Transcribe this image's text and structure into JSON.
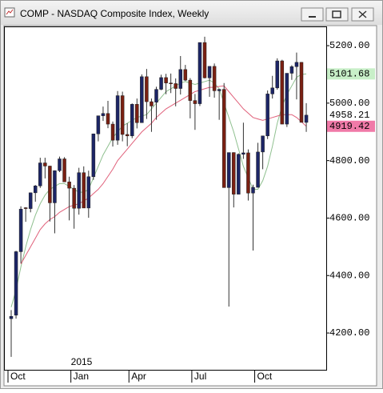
{
  "chart_data": {
    "type": "candlestick",
    "title": "COMP - NASDAQ Composite Index, Weekly",
    "year_label": "2015",
    "categories": [
      "Oct",
      null,
      null,
      null,
      null,
      null,
      null,
      null,
      null,
      null,
      null,
      null,
      null,
      "Jan",
      null,
      null,
      null,
      null,
      null,
      null,
      null,
      null,
      null,
      null,
      null,
      "Apr",
      null,
      null,
      null,
      null,
      null,
      null,
      null,
      null,
      null,
      null,
      null,
      null,
      "Jul",
      null,
      null,
      null,
      null,
      null,
      null,
      null,
      null,
      null,
      null,
      null,
      null,
      "Oct",
      null,
      null,
      null,
      null,
      null,
      null,
      null,
      null,
      null,
      null
    ],
    "open": [
      4250,
      4262,
      4483,
      4636,
      4633,
      4688,
      4712,
      4792,
      4781,
      4653,
      4765,
      4806,
      4726,
      4704,
      4634,
      4758,
      4635,
      4744,
      4893,
      4956,
      4964,
      4927,
      4871,
      5026,
      4891,
      4886,
      4996,
      4932,
      5092,
      5005,
      5003,
      5048,
      5089,
      5070,
      5068,
      5051,
      5117,
      5080,
      5009,
      4998,
      5211,
      5088,
      5128,
      5043,
      5048,
      4706,
      4828,
      4683,
      4822,
      4827,
      4687,
      4707,
      4830,
      4886,
      5032,
      5053,
      5147,
      4927,
      5104,
      5127,
      5142,
      4933
    ],
    "high": [
      4280,
      4486,
      4641,
      4638,
      4689,
      4715,
      4810,
      4810,
      4782,
      4766,
      4814,
      4812,
      4744,
      4715,
      4775,
      4780,
      4765,
      4894,
      4956,
      4988,
      5008,
      4936,
      5042,
      5040,
      4930,
      4999,
      5016,
      5100,
      5119,
      5016,
      5057,
      5099,
      5102,
      5103,
      5086,
      5164,
      5133,
      5087,
      5032,
      5211,
      5231,
      5128,
      5138,
      5049,
      5070,
      4828,
      4829,
      4825,
      4932,
      4839,
      4716,
      4862,
      4886,
      5044,
      5095,
      5156,
      5151,
      5104,
      5132,
      5176,
      5143,
      5000
    ],
    "low": [
      4117,
      4250,
      4443,
      4587,
      4620,
      4657,
      4705,
      4738,
      4588,
      4547,
      4760,
      4726,
      4592,
      4563,
      4612,
      4635,
      4601,
      4733,
      4867,
      4938,
      4913,
      4849,
      4855,
      4867,
      4850,
      4878,
      4912,
      4932,
      4945,
      4900,
      4942,
      5045,
      5031,
      5035,
      4989,
      5030,
      5077,
      4947,
      4907,
      4990,
      5086,
      5022,
      5019,
      4942,
      4706,
      4292,
      4637,
      4683,
      4806,
      4661,
      4487,
      4706,
      4770,
      4875,
      5016,
      5047,
      4927,
      4917,
      5081,
      5013,
      4933,
      4900
    ],
    "close": [
      4258,
      4483,
      4631,
      4633,
      4688,
      4712,
      4792,
      4781,
      4653,
      4765,
      4806,
      4726,
      4704,
      4634,
      4758,
      4635,
      4744,
      4893,
      4956,
      4964,
      4927,
      4871,
      5026,
      4891,
      4886,
      4996,
      4932,
      5092,
      5005,
      4990,
      5048,
      5089,
      5070,
      5068,
      5051,
      5117,
      5080,
      5009,
      4998,
      5211,
      5088,
      5128,
      5043,
      5048,
      4706,
      4828,
      4683,
      4822,
      4827,
      4687,
      4707,
      4830,
      4886,
      5032,
      5053,
      5147,
      4927,
      5104,
      5127,
      5142,
      4933,
      4958.21
    ],
    "up_color": "#1c2566",
    "down_color": "#7a2012",
    "overlays": [
      {
        "color": "#8fc08f",
        "values": [
          4290,
          4350,
          4430,
          4500,
          4560,
          4610,
          4650,
          4680,
          4700,
          4710,
          4720,
          4720,
          4710,
          4700,
          4690,
          4690,
          4700,
          4740,
          4780,
          4820,
          4850,
          4880,
          4900,
          4920,
          4930,
          4940,
          4950,
          4955,
          4960,
          4980,
          5000,
          5020,
          5040,
          5050,
          5060,
          5070,
          5075,
          5070,
          5065,
          5070,
          5075,
          5080,
          5070,
          5050,
          5000,
          4950,
          4900,
          4840,
          4780,
          4740,
          4700,
          4700,
          4730,
          4780,
          4850,
          4930,
          4990,
          5030,
          5060,
          5090,
          5100,
          5101.68
        ]
      },
      {
        "color": "#e0607a",
        "values": [
          null,
          null,
          4440,
          4470,
          4500,
          4530,
          4560,
          4580,
          4595,
          4605,
          4620,
          4630,
          4640,
          4645,
          4650,
          4660,
          4670,
          4685,
          4700,
          4720,
          4745,
          4770,
          4800,
          4820,
          4840,
          4860,
          4880,
          4900,
          4915,
          4930,
          4950,
          4965,
          4980,
          4990,
          5000,
          5010,
          5020,
          5030,
          5040,
          5045,
          5050,
          5055,
          5055,
          5058,
          5060,
          5040,
          5020,
          5000,
          4980,
          4965,
          4950,
          4945,
          4940,
          4945,
          4950,
          4955,
          4960,
          4960,
          4960,
          4950,
          4935,
          4919.42
        ]
      }
    ],
    "ylim": [
      4072,
      5267
    ],
    "yticks": [
      {
        "value": 4200,
        "label": "4200.00"
      },
      {
        "value": 4400,
        "label": "4400.00"
      },
      {
        "value": 4600,
        "label": "4600.00"
      },
      {
        "value": 4800,
        "label": "4800.00"
      },
      {
        "value": 5000,
        "label": "5000.00"
      },
      {
        "value": 5200,
        "label": "5200.00"
      }
    ],
    "grid": false
  }
}
